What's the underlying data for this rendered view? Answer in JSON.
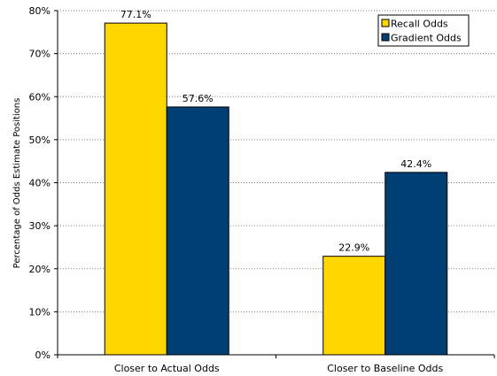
{
  "chart_data": {
    "type": "bar",
    "title": "",
    "xlabel": "",
    "ylabel": "Percentage of Odds Estimate Positions",
    "categories": [
      "Closer to Actual Odds",
      "Closer to Baseline Odds"
    ],
    "series": [
      {
        "name": "Recall Odds",
        "values": [
          77.1,
          22.9
        ],
        "labels": [
          "77.1%",
          "22.9%"
        ],
        "color": "#FFD700"
      },
      {
        "name": "Gradient Odds",
        "values": [
          57.6,
          42.4
        ],
        "labels": [
          "57.6%",
          "42.4%"
        ],
        "color": "#003F73"
      }
    ],
    "ylim": [
      0,
      80
    ],
    "yticks": [
      0,
      10,
      20,
      30,
      40,
      50,
      60,
      70,
      80
    ],
    "ytick_labels": [
      "0%",
      "10%",
      "20%",
      "30%",
      "40%",
      "50%",
      "60%",
      "70%",
      "80%"
    ],
    "grid": true,
    "legend_position": "top-right"
  }
}
